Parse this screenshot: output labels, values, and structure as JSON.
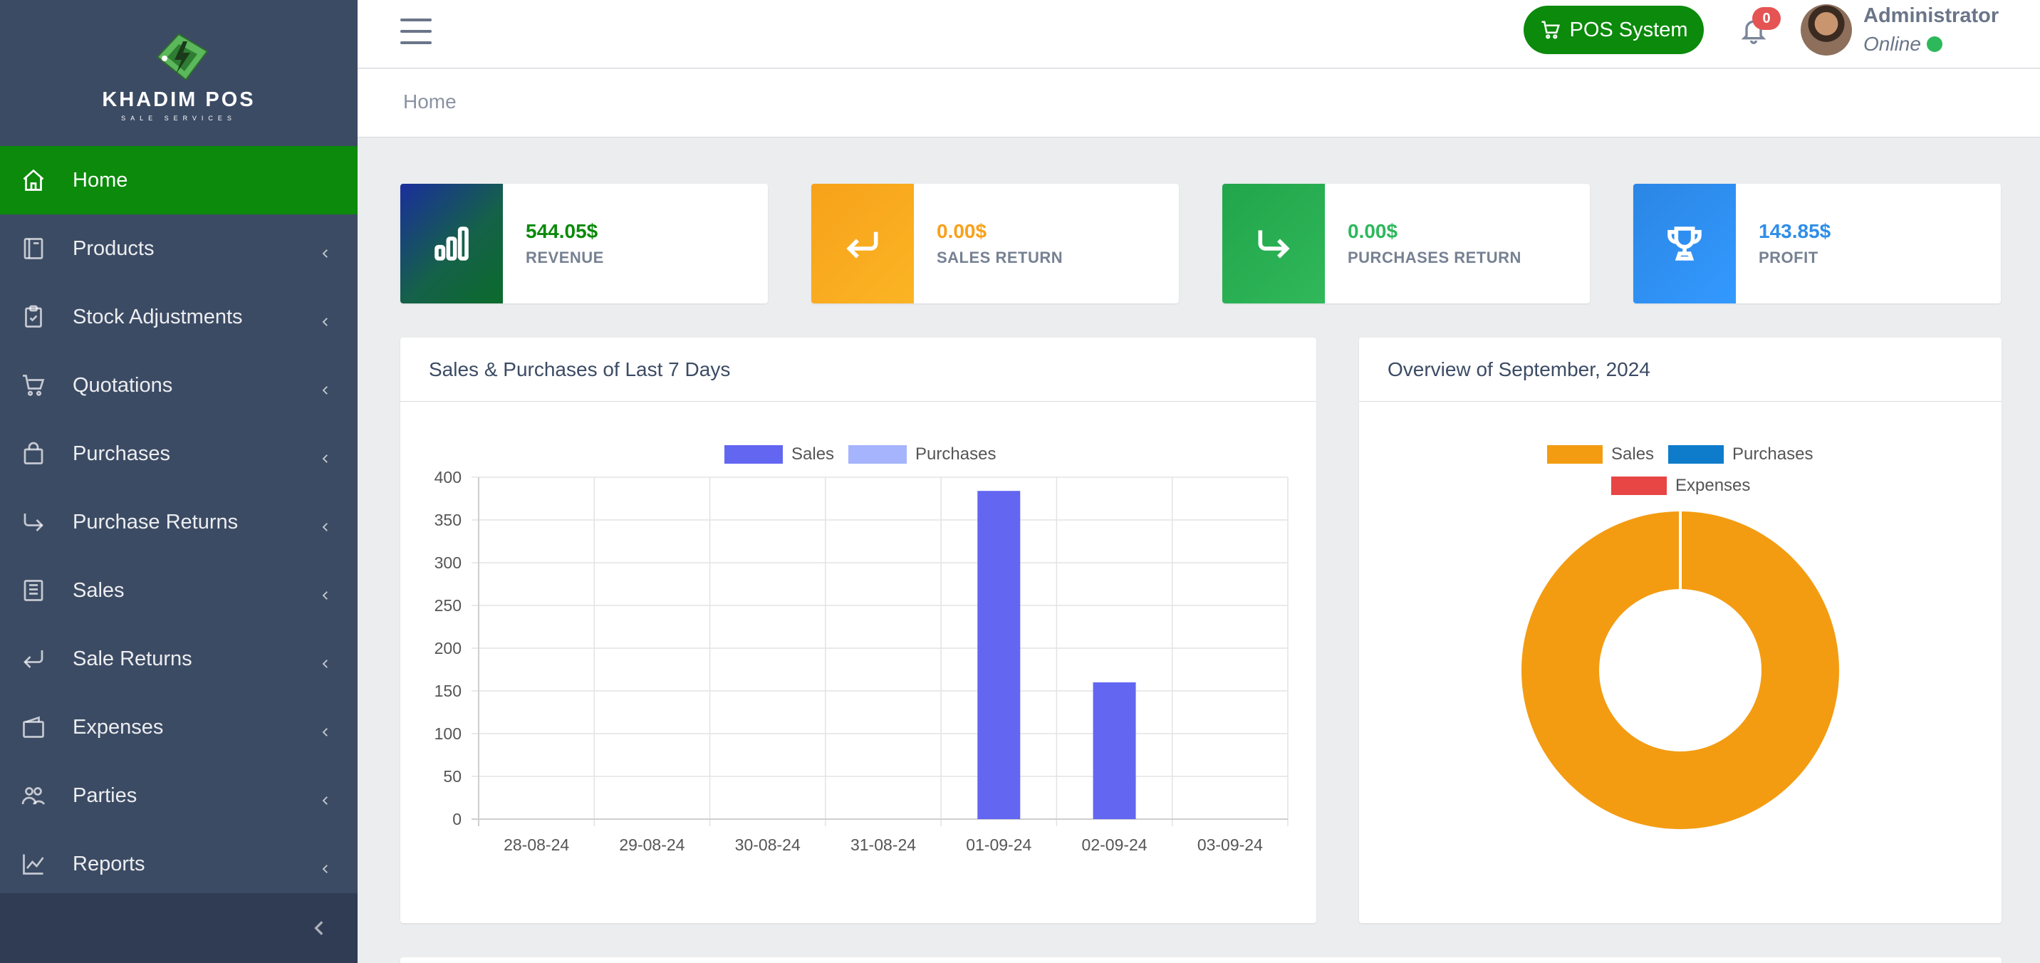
{
  "brand": {
    "name": "KHADIM POS",
    "tagline": "SALE SERVICES"
  },
  "sidebar": {
    "items": [
      {
        "label": "Home",
        "icon": "home-icon",
        "active": true
      },
      {
        "label": "Products",
        "icon": "book-icon"
      },
      {
        "label": "Stock Adjustments",
        "icon": "clipboard-check-icon"
      },
      {
        "label": "Quotations",
        "icon": "cart-icon"
      },
      {
        "label": "Purchases",
        "icon": "bag-icon"
      },
      {
        "label": "Purchase Returns",
        "icon": "arrow-return-right-icon"
      },
      {
        "label": "Sales",
        "icon": "receipt-icon"
      },
      {
        "label": "Sale Returns",
        "icon": "arrow-return-left-icon"
      },
      {
        "label": "Expenses",
        "icon": "wallet-icon"
      },
      {
        "label": "Parties",
        "icon": "people-icon"
      },
      {
        "label": "Reports",
        "icon": "graph-up-icon"
      }
    ]
  },
  "header": {
    "pos_button": "POS System",
    "notifications_count": "0",
    "user_name": "Administrator",
    "user_status": "Online"
  },
  "breadcrumb": {
    "current": "Home"
  },
  "stats": [
    {
      "value": "544.05$",
      "label": "REVENUE",
      "color": "#0b8a0b",
      "icon": "bar-chart-icon"
    },
    {
      "value": "0.00$",
      "label": "SALES RETURN",
      "color": "#f9a11b",
      "icon": "return-left-icon"
    },
    {
      "value": "0.00$",
      "label": "PURCHASES RETURN",
      "color": "#2eb85c",
      "icon": "return-right-icon"
    },
    {
      "value": "143.85$",
      "label": "PROFIT",
      "color": "#2f8ee8",
      "icon": "trophy-icon"
    }
  ],
  "panels": {
    "bar_title": "Sales & Purchases of Last 7 Days",
    "donut_title": "Overview of September, 2024"
  },
  "chart_data": [
    {
      "type": "bar",
      "categories": [
        "28-08-24",
        "29-08-24",
        "30-08-24",
        "31-08-24",
        "01-09-24",
        "02-09-24",
        "03-09-24"
      ],
      "series": [
        {
          "name": "Sales",
          "values": [
            0,
            0,
            0,
            0,
            384,
            160,
            0
          ],
          "color": "#6366f1"
        },
        {
          "name": "Purchases",
          "values": [
            0,
            0,
            0,
            0,
            0,
            0,
            0
          ],
          "color": "#a5b4fc"
        }
      ],
      "ylim": [
        0,
        400
      ],
      "yticks": [
        0,
        50,
        100,
        150,
        200,
        250,
        300,
        350,
        400
      ],
      "grid": true,
      "legend": "top"
    },
    {
      "type": "pie",
      "variant": "doughnut",
      "labels": [
        "Sales",
        "Purchases",
        "Expenses"
      ],
      "values": [
        544.05,
        0,
        0
      ],
      "colors": [
        "#f39c12",
        "#0e7ccb",
        "#e84545"
      ],
      "legend": "top"
    }
  ]
}
